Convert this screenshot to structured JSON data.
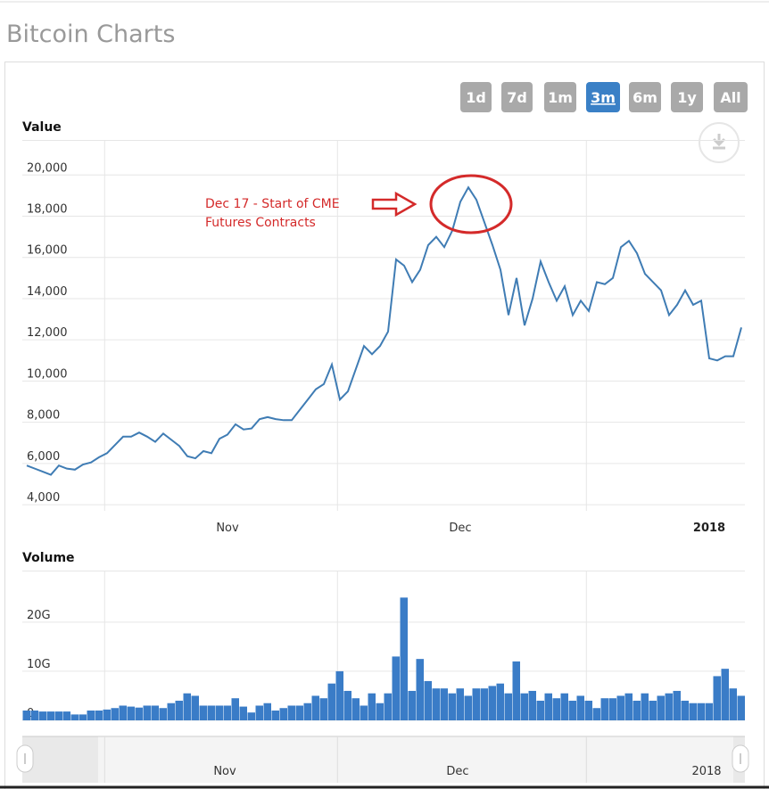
{
  "header": {
    "title": "Bitcoin Charts"
  },
  "range_buttons": [
    {
      "label": "1d",
      "selected": false
    },
    {
      "label": "7d",
      "selected": false
    },
    {
      "label": "1m",
      "selected": false
    },
    {
      "label": "3m",
      "selected": true
    },
    {
      "label": "6m",
      "selected": false
    },
    {
      "label": "1y",
      "selected": false
    },
    {
      "label": "All",
      "selected": false
    }
  ],
  "navigator": {
    "labels": [
      "Nov",
      "Dec",
      "2018"
    ]
  },
  "chart_data": [
    {
      "type": "line",
      "title": "Value",
      "categories": [
        null,
        null,
        null,
        null,
        null,
        null,
        null,
        null,
        null,
        null,
        null,
        null,
        null,
        null,
        null,
        null,
        null,
        null,
        null,
        null,
        null,
        null,
        null,
        null,
        null,
        "Nov",
        null,
        null,
        null,
        null,
        null,
        null,
        null,
        null,
        null,
        null,
        null,
        null,
        null,
        null,
        null,
        null,
        null,
        null,
        null,
        null,
        null,
        null,
        null,
        null,
        null,
        null,
        null,
        null,
        "Dec",
        null,
        null,
        null,
        null,
        null,
        null,
        null,
        null,
        null,
        null,
        null,
        null,
        null,
        null,
        null,
        null,
        null,
        null,
        null,
        null,
        null,
        null,
        null,
        null,
        null,
        null,
        null,
        null,
        null,
        null,
        "2018",
        null,
        null,
        null,
        null
      ],
      "series": [
        {
          "name": "Value",
          "color": "#3f7cb4",
          "values": [
            5900,
            5750,
            5600,
            5450,
            5900,
            5750,
            5700,
            5950,
            6050,
            6300,
            6500,
            6900,
            7300,
            7300,
            7500,
            7300,
            7050,
            7450,
            7150,
            6850,
            6350,
            6250,
            6600,
            6500,
            7200,
            7400,
            7900,
            7650,
            7700,
            8150,
            8250,
            8150,
            8100,
            8100,
            8600,
            9100,
            9600,
            9850,
            10800,
            9100,
            9500,
            10600,
            11700,
            11300,
            11700,
            12400,
            15900,
            15600,
            14800,
            15400,
            16600,
            17000,
            16500,
            17300,
            18700,
            19400,
            18800,
            17700,
            16600,
            15400,
            13200,
            15000,
            12700,
            14000,
            15800,
            14800,
            13900,
            14600,
            13200,
            13900,
            13400,
            14800,
            14700,
            15000,
            16500,
            16800,
            16200,
            15200,
            14800,
            14400,
            13200,
            13700,
            14400,
            13700,
            13900,
            11100,
            11000,
            11200,
            11200,
            12600
          ]
        }
      ],
      "ylim": [
        3700,
        21700
      ],
      "yticks": [
        {
          "value": 4000,
          "label": "4,000"
        },
        {
          "value": 6000,
          "label": "6,000"
        },
        {
          "value": 8000,
          "label": "8,000"
        },
        {
          "value": 10000,
          "label": "10,000"
        },
        {
          "value": 12000,
          "label": "12,000"
        },
        {
          "value": 14000,
          "label": "14,000"
        },
        {
          "value": 16000,
          "label": "16,000"
        },
        {
          "value": 18000,
          "label": "18,000"
        },
        {
          "value": 20000,
          "label": "20,000"
        }
      ],
      "grid": true,
      "annotation": {
        "lines": [
          "Dec 17 - Start of CME",
          "Futures Contracts"
        ],
        "color": "#d42a2a"
      }
    },
    {
      "type": "bar",
      "title": "Volume",
      "series": [
        {
          "name": "Volume",
          "color": "#3a7cc7",
          "values": [
            2,
            2,
            1.8,
            1.8,
            1.8,
            1.8,
            1.2,
            1.2,
            2,
            2,
            2.2,
            2.5,
            3,
            2.8,
            2.6,
            3,
            3,
            2.5,
            3.5,
            4,
            5.5,
            5,
            3,
            3,
            3,
            3,
            4.5,
            2.8,
            1.6,
            3,
            3.5,
            2,
            2.5,
            3,
            3,
            3.5,
            5,
            4.5,
            7.5,
            10,
            6,
            4.5,
            3,
            5.5,
            3.5,
            5.5,
            13,
            25,
            6,
            12.5,
            8,
            6.5,
            6.5,
            5.5,
            6.5,
            5,
            6.5,
            6.5,
            7,
            7.5,
            5.5,
            12,
            5.5,
            6,
            4,
            5.5,
            4.5,
            5.5,
            4,
            5,
            4,
            2.5,
            4.5,
            4.5,
            5,
            5.5,
            4,
            5.5,
            4,
            5,
            5.5,
            6,
            4,
            3.5,
            3.5,
            3.5,
            9,
            10.5,
            6.5,
            5
          ]
        }
      ],
      "ylim": [
        0,
        30.5
      ],
      "yticks": [
        0,
        {
          "value": 10,
          "label": "10G"
        },
        {
          "value": 20,
          "label": "20G"
        }
      ],
      "grid": true
    }
  ]
}
